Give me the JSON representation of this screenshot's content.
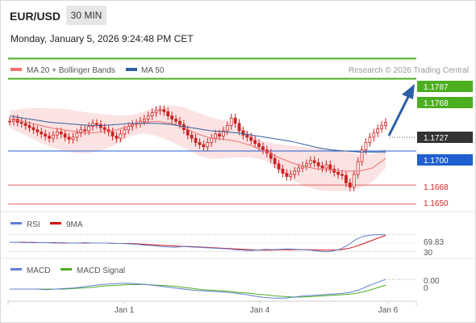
{
  "header": {
    "symbol": "EUR/USD",
    "timeframe": "30 MIN",
    "datetime": "Monday, January 5, 2026 9:24:48 PM CET"
  },
  "credit": "Research © 2026 Trading Central",
  "colors": {
    "resistance": "#4caf1f",
    "current_tag": "#333333",
    "pivot": "#1f5fd0",
    "support": "#e06060",
    "ma20": "#f07070",
    "ma50": "#2f5f9f",
    "bollinger_fill": "#fbe0e0",
    "arrow": "#2f5ea8",
    "rsi": "#5f7fcf",
    "rsi_ma": "#cc1111",
    "macd": "#5f7fcf",
    "macd_signal": "#4caf1f",
    "candle": "#cc2222"
  },
  "chart_data": [
    {
      "type": "candlestick",
      "title": "EUR/USD 30 MIN",
      "legend": [
        {
          "name": "MA 20 + Bollinger Bands",
          "color": "#f07070"
        },
        {
          "name": "MA 50",
          "color": "#2f5f9f"
        }
      ],
      "x_ticks": [
        "Jan 1",
        "Jan 4",
        "Jan 6"
      ],
      "ylim": [
        1.1643,
        1.1795
      ],
      "levels": [
        {
          "role": "resistance",
          "label": "1.1787",
          "value": 1.1787
        },
        {
          "role": "resistance",
          "label": "1.1768",
          "value": 1.1768
        },
        {
          "role": "last_price",
          "label": "1.1727",
          "value": 1.1727
        },
        {
          "role": "pivot",
          "label": "1.1700",
          "value": 1.17
        },
        {
          "role": "support",
          "label": "1.1668",
          "value": 1.1668
        },
        {
          "role": "support",
          "label": "1.1650",
          "value": 1.165
        }
      ],
      "price_series": [
        1.1728,
        1.173,
        1.1727,
        1.1726,
        1.1724,
        1.1722,
        1.172,
        1.1718,
        1.1716,
        1.1714,
        1.1712,
        1.1715,
        1.1718,
        1.1716,
        1.1713,
        1.1711,
        1.1713,
        1.1717,
        1.172,
        1.1719,
        1.1723,
        1.1726,
        1.1725,
        1.1722,
        1.172,
        1.1718,
        1.1714,
        1.1712,
        1.1716,
        1.172,
        1.1723,
        1.1725,
        1.1726,
        1.1728,
        1.173,
        1.1733,
        1.1736,
        1.1738,
        1.1739,
        1.1737,
        1.1733,
        1.173,
        1.1728,
        1.1725,
        1.172,
        1.1715,
        1.1712,
        1.1708,
        1.1706,
        1.1704,
        1.1708,
        1.1712,
        1.1716,
        1.1714,
        1.1719,
        1.1724,
        1.1731,
        1.1726,
        1.1719,
        1.1715,
        1.1713,
        1.171,
        1.1707,
        1.1704,
        1.1701,
        1.1698,
        1.1693,
        1.1688,
        1.1683,
        1.1679,
        1.1676,
        1.1678,
        1.1681,
        1.1684,
        1.1686,
        1.1688,
        1.1691,
        1.1689,
        1.1686,
        1.1684,
        1.1687,
        1.1683,
        1.168,
        1.1678,
        1.1677,
        1.167,
        1.1666,
        1.1678,
        1.169,
        1.1701,
        1.1708,
        1.1713,
        1.1717,
        1.1721,
        1.1724,
        1.1727
      ],
      "ma20_series": [
        1.173,
        1.1728,
        1.1725,
        1.1722,
        1.172,
        1.1718,
        1.1717,
        1.1718,
        1.172,
        1.1724,
        1.1727,
        1.1728,
        1.1726,
        1.1722,
        1.1716,
        1.1712,
        1.1711,
        1.1709,
        1.1705,
        1.17,
        1.1694,
        1.1689,
        1.1685,
        1.1683,
        1.1682,
        1.1681,
        1.1681,
        1.1684,
        1.1693
      ],
      "ma50_series": [
        1.1733,
        1.1731,
        1.1729,
        1.1727,
        1.1726,
        1.1725,
        1.1724,
        1.1724,
        1.1725,
        1.1726,
        1.1726,
        1.1726,
        1.1725,
        1.1723,
        1.1721,
        1.1719,
        1.1718,
        1.1717,
        1.1715,
        1.1713,
        1.1711,
        1.1709,
        1.1706,
        1.1703,
        1.1701,
        1.17,
        1.1699,
        1.1699,
        1.1699
      ],
      "projection": {
        "from": 1.1727,
        "to": 1.1787
      }
    },
    {
      "type": "line",
      "legend": [
        {
          "name": "RSI",
          "color": "#5f7fcf"
        },
        {
          "name": "9MA",
          "color": "#cc1111"
        }
      ],
      "last_value_label": "69.83",
      "overbought": 70,
      "oversold": 30,
      "hidden_tick_label": "30",
      "rsi": [
        52,
        52,
        51,
        52,
        51,
        51,
        50,
        51,
        50,
        50,
        51,
        50,
        50,
        50,
        49,
        49,
        48,
        47,
        45,
        44,
        42,
        41,
        40,
        42,
        41,
        40,
        39,
        38,
        37,
        36,
        34,
        33,
        32,
        33,
        35,
        34,
        35,
        36,
        35,
        34,
        33,
        31,
        29,
        31,
        36,
        45,
        58,
        66,
        69,
        70,
        70
      ],
      "rsi_ma": [
        52,
        52,
        52,
        51,
        51,
        51,
        51,
        50,
        50,
        50,
        50,
        50,
        50,
        50,
        49,
        49,
        49,
        48,
        47,
        46,
        45,
        44,
        43,
        42,
        42,
        41,
        40,
        39,
        38,
        37,
        36,
        35,
        34,
        33,
        33,
        33,
        34,
        34,
        34,
        34,
        34,
        33,
        33,
        33,
        34,
        37,
        42,
        48,
        55,
        62,
        68
      ]
    },
    {
      "type": "line",
      "legend": [
        {
          "name": "MACD",
          "color": "#5f7fcf"
        },
        {
          "name": "MACD Signal",
          "color": "#4caf1f"
        }
      ],
      "last_value_label": "0.00",
      "zero_label": "0",
      "macd": [
        0.0,
        0.0,
        0.0,
        0.0,
        -0.0001,
        0.0,
        0.0001,
        0.0002,
        0.0004,
        0.0006,
        0.0008,
        0.0009,
        0.001,
        0.001,
        0.0009,
        0.0008,
        0.0006,
        0.0004,
        0.0002,
        0.0,
        -0.0002,
        -0.0003,
        -0.0004,
        -0.0005,
        -0.0006,
        -0.0008,
        -0.001,
        -0.0013,
        -0.0015,
        -0.0016,
        -0.0016,
        -0.0014,
        -0.0012,
        -0.0011,
        -0.001,
        -0.0009,
        -0.0008,
        -0.0006,
        -0.0002,
        0.0005,
        0.0011,
        0.0017
      ],
      "signal": [
        0.0,
        0.0,
        0.0,
        0.0,
        0.0,
        0.0,
        0.0,
        0.0001,
        0.0002,
        0.0003,
        0.0005,
        0.0006,
        0.0007,
        0.0008,
        0.0008,
        0.0008,
        0.0007,
        0.0006,
        0.0005,
        0.0003,
        0.0001,
        -0.0001,
        -0.0002,
        -0.0003,
        -0.0004,
        -0.0006,
        -0.0007,
        -0.0009,
        -0.001,
        -0.0012,
        -0.0013,
        -0.0014,
        -0.0014,
        -0.0013,
        -0.0012,
        -0.0011,
        -0.001,
        -0.0009,
        -0.0007,
        -0.0003,
        0.0002,
        0.0007
      ]
    }
  ]
}
